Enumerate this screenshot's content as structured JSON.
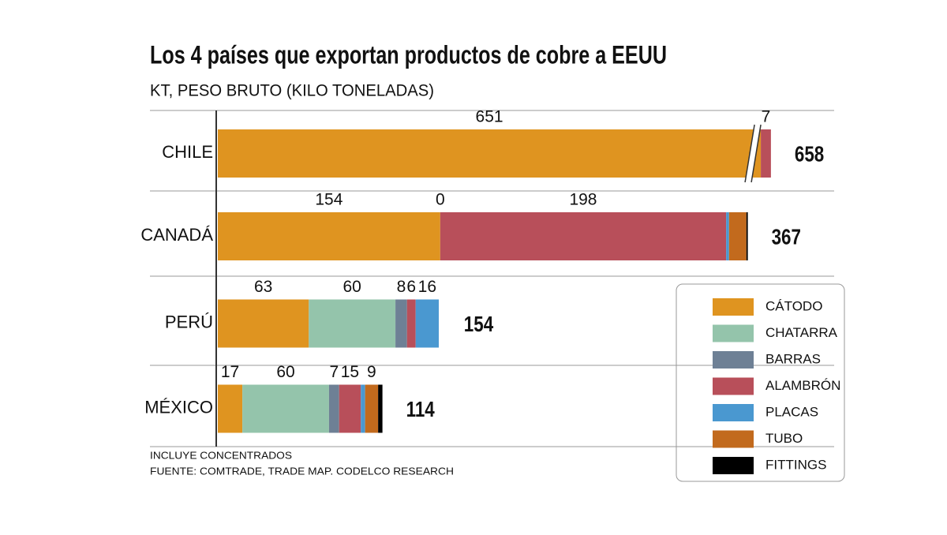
{
  "chart_data": {
    "type": "stacked-bar-horizontal",
    "title": "Los 4 países que exportan productos de cobre a EEUU",
    "subtitle": "KT, PESO BRUTO (KILO TONELADAS)",
    "categories": [
      "CHILE",
      "CANADÁ",
      "PERÚ",
      "MÉXICO"
    ],
    "series": [
      {
        "name": "CÁTODO",
        "color": "#df9420",
        "values": [
          651,
          154,
          63,
          17
        ],
        "value_labels": [
          "651",
          "154",
          "63",
          "17"
        ]
      },
      {
        "name": "CHATARRA",
        "color": "#94c4ab",
        "values": [
          0,
          0,
          60,
          60
        ],
        "value_labels": [
          null,
          "0",
          "60",
          "60"
        ]
      },
      {
        "name": "BARRAS",
        "color": "#6e8095",
        "values": [
          0,
          0,
          8,
          7
        ],
        "value_labels": [
          null,
          null,
          "8",
          "7"
        ]
      },
      {
        "name": "ALAMBRÓN",
        "color": "#b84f5a",
        "values": [
          7,
          198,
          6,
          15
        ],
        "value_labels": [
          "7",
          "198",
          "6",
          "15"
        ]
      },
      {
        "name": "PLACAS",
        "color": "#4a98d0",
        "values": [
          0,
          2,
          16,
          3
        ],
        "value_labels": [
          null,
          null,
          "16",
          null
        ]
      },
      {
        "name": "TUBO",
        "color": "#c26a1d",
        "values": [
          0,
          12,
          0,
          9
        ],
        "value_labels": [
          null,
          null,
          null,
          "9"
        ]
      },
      {
        "name": "FITTINGS",
        "color": "#000000",
        "values": [
          0,
          1,
          0,
          3
        ],
        "value_labels": [
          null,
          null,
          null,
          null
        ]
      }
    ],
    "totals": [
      658,
      367,
      154,
      114
    ],
    "notes": [
      "INCLUYE CONCENTRADOS",
      "FUENTE: COMTRADE, TRADE MAP. CODELCO RESEARCH"
    ]
  }
}
